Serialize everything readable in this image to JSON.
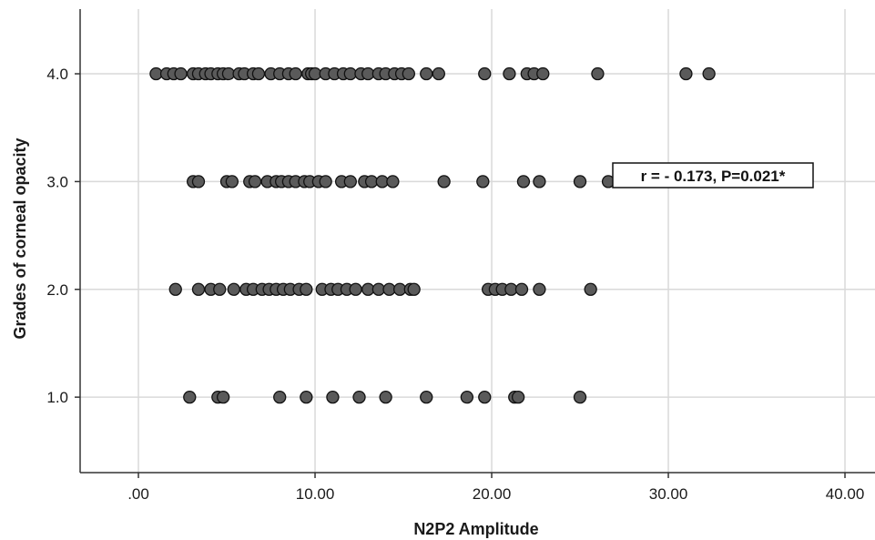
{
  "chart_data": {
    "type": "scatter",
    "xlabel": "N2P2 Amplitude",
    "ylabel": "Grades of corneal opacity",
    "xlim": [
      -3.3,
      41.7
    ],
    "ylim": [
      0.3,
      4.6
    ],
    "xticks": [
      {
        "value": 0,
        "label": ".00"
      },
      {
        "value": 10,
        "label": "10.00"
      },
      {
        "value": 20,
        "label": "20.00"
      },
      {
        "value": 30,
        "label": "30.00"
      },
      {
        "value": 40,
        "label": "40.00"
      }
    ],
    "yticks": [
      {
        "value": 1,
        "label": "1.0"
      },
      {
        "value": 2,
        "label": "2.0"
      },
      {
        "value": 3,
        "label": "3.0"
      },
      {
        "value": 4,
        "label": "4.0"
      }
    ],
    "grid": true,
    "annotation": "r = - 0.173, P=0.021*",
    "colors": {
      "marker_fill": "#5a5a5a",
      "marker_edge": "#111111",
      "grid": "#d9d9d9",
      "axis": "#333333"
    },
    "series": [
      {
        "points": [
          [
            1.0,
            4
          ],
          [
            1.6,
            4
          ],
          [
            2.0,
            4
          ],
          [
            2.4,
            4
          ],
          [
            3.1,
            4
          ],
          [
            3.4,
            4
          ],
          [
            3.8,
            4
          ],
          [
            4.1,
            4
          ],
          [
            4.5,
            4
          ],
          [
            4.8,
            4
          ],
          [
            5.1,
            4
          ],
          [
            5.7,
            4
          ],
          [
            6.0,
            4
          ],
          [
            6.5,
            4
          ],
          [
            6.8,
            4
          ],
          [
            7.5,
            4
          ],
          [
            8.0,
            4
          ],
          [
            8.5,
            4
          ],
          [
            8.9,
            4
          ],
          [
            9.6,
            4
          ],
          [
            9.8,
            4
          ],
          [
            10.0,
            4
          ],
          [
            10.6,
            4
          ],
          [
            11.1,
            4
          ],
          [
            11.6,
            4
          ],
          [
            12.0,
            4
          ],
          [
            12.6,
            4
          ],
          [
            13.0,
            4
          ],
          [
            13.6,
            4
          ],
          [
            14.0,
            4
          ],
          [
            14.5,
            4
          ],
          [
            14.9,
            4
          ],
          [
            15.3,
            4
          ],
          [
            16.3,
            4
          ],
          [
            17.0,
            4
          ],
          [
            19.6,
            4
          ],
          [
            21.0,
            4
          ],
          [
            22.0,
            4
          ],
          [
            22.4,
            4
          ],
          [
            22.9,
            4
          ],
          [
            26.0,
            4
          ],
          [
            31.0,
            4
          ],
          [
            32.3,
            4
          ],
          [
            3.1,
            3
          ],
          [
            3.4,
            3
          ],
          [
            5.0,
            3
          ],
          [
            5.3,
            3
          ],
          [
            6.3,
            3
          ],
          [
            6.6,
            3
          ],
          [
            7.3,
            3
          ],
          [
            7.8,
            3
          ],
          [
            8.1,
            3
          ],
          [
            8.5,
            3
          ],
          [
            8.9,
            3
          ],
          [
            9.4,
            3
          ],
          [
            9.7,
            3
          ],
          [
            10.2,
            3
          ],
          [
            10.6,
            3
          ],
          [
            11.5,
            3
          ],
          [
            12.0,
            3
          ],
          [
            12.8,
            3
          ],
          [
            13.2,
            3
          ],
          [
            13.8,
            3
          ],
          [
            14.4,
            3
          ],
          [
            17.3,
            3
          ],
          [
            19.5,
            3
          ],
          [
            21.8,
            3
          ],
          [
            22.7,
            3
          ],
          [
            25.0,
            3
          ],
          [
            26.6,
            3
          ],
          [
            2.1,
            2
          ],
          [
            3.4,
            2
          ],
          [
            4.1,
            2
          ],
          [
            4.6,
            2
          ],
          [
            5.4,
            2
          ],
          [
            6.1,
            2
          ],
          [
            6.5,
            2
          ],
          [
            7.0,
            2
          ],
          [
            7.4,
            2
          ],
          [
            7.8,
            2
          ],
          [
            8.2,
            2
          ],
          [
            8.6,
            2
          ],
          [
            9.1,
            2
          ],
          [
            9.5,
            2
          ],
          [
            10.4,
            2
          ],
          [
            10.9,
            2
          ],
          [
            11.3,
            2
          ],
          [
            11.8,
            2
          ],
          [
            12.3,
            2
          ],
          [
            13.0,
            2
          ],
          [
            13.6,
            2
          ],
          [
            14.2,
            2
          ],
          [
            14.8,
            2
          ],
          [
            15.4,
            2
          ],
          [
            15.6,
            2
          ],
          [
            19.8,
            2
          ],
          [
            20.2,
            2
          ],
          [
            20.6,
            2
          ],
          [
            21.1,
            2
          ],
          [
            21.7,
            2
          ],
          [
            22.7,
            2
          ],
          [
            25.6,
            2
          ],
          [
            2.9,
            1
          ],
          [
            4.5,
            1
          ],
          [
            4.8,
            1
          ],
          [
            8.0,
            1
          ],
          [
            9.5,
            1
          ],
          [
            11.0,
            1
          ],
          [
            12.5,
            1
          ],
          [
            14.0,
            1
          ],
          [
            16.3,
            1
          ],
          [
            18.6,
            1
          ],
          [
            19.6,
            1
          ],
          [
            21.3,
            1
          ],
          [
            21.5,
            1
          ],
          [
            25.0,
            1
          ]
        ]
      }
    ]
  }
}
